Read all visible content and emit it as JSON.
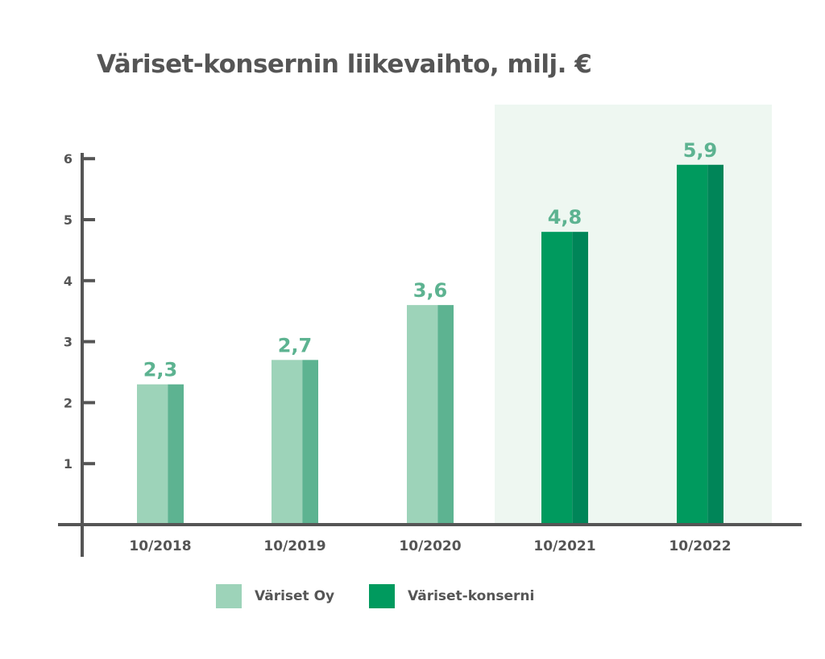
{
  "chart_data": {
    "type": "bar",
    "title": "Väriset-konsernin liikevaihto, milj. €",
    "categories": [
      "10/2018",
      "10/2019",
      "10/2020",
      "10/2021",
      "10/2022"
    ],
    "values": [
      2.3,
      2.7,
      3.6,
      4.8,
      5.9
    ],
    "value_labels": [
      "2,3",
      "2,7",
      "3,6",
      "4,8",
      "5,9"
    ],
    "series_membership": [
      "Väriset Oy",
      "Väriset Oy",
      "Väriset Oy",
      "Väriset-konserni",
      "Väriset-konserni"
    ],
    "highlighted_categories": [
      "10/2021",
      "10/2022"
    ],
    "yticks": [
      1,
      2,
      3,
      4,
      5,
      6
    ],
    "ylim": [
      0,
      6.3
    ],
    "xlabel": "",
    "ylabel": "",
    "grid": false,
    "legend_placement": "bottom-center",
    "legend": [
      {
        "label": "Väriset Oy",
        "color": "#9dd3b9"
      },
      {
        "label": "Väriset-konserni",
        "color": "#009a5e"
      }
    ],
    "colors": {
      "oy_light": "#9dd3b9",
      "oy_dark": "#5db391",
      "group_light": "#009a5e",
      "group_dark": "#008558",
      "value_label": "#5db391",
      "axis": "#555555",
      "highlight_bg": "#eef7f1"
    }
  }
}
